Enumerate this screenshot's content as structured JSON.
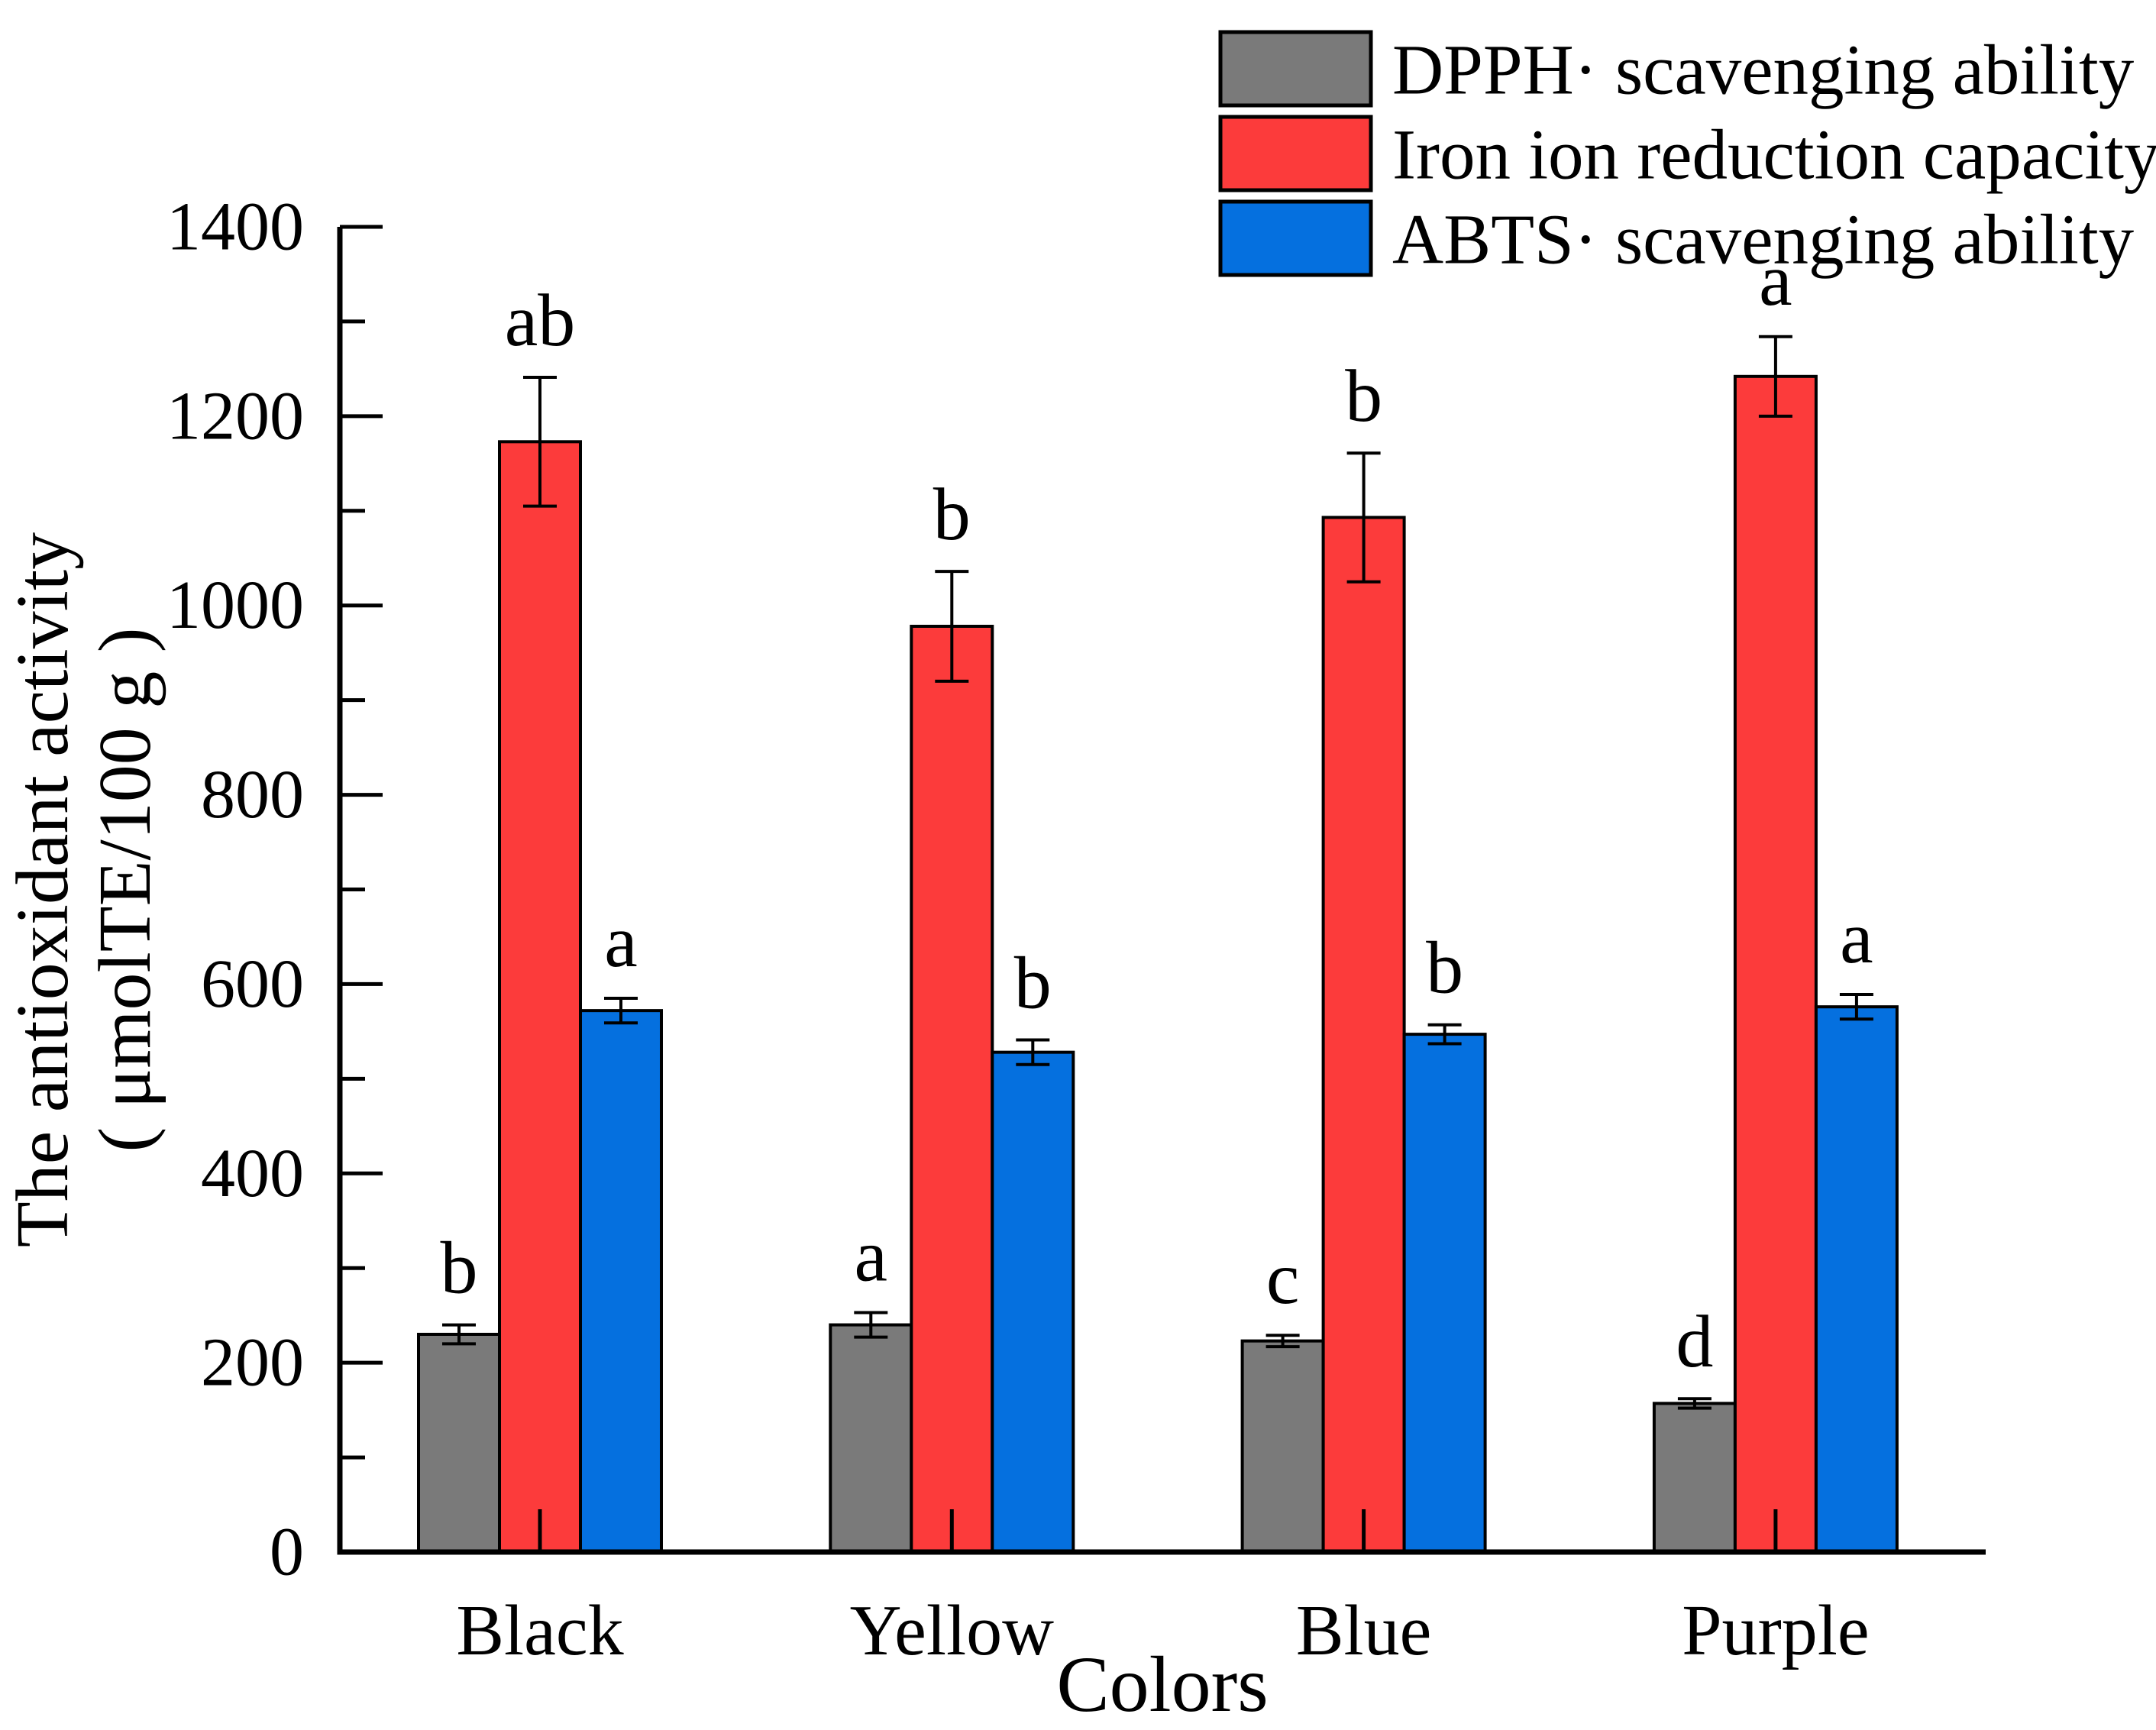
{
  "chart_data": {
    "type": "bar",
    "title": "",
    "categories": [
      "Black",
      "Yellow",
      "Blue",
      "Purple"
    ],
    "series": [
      {
        "name": "DPPH· scavenging ability",
        "color": "#7A7A7A",
        "values": [
          230,
          240,
          223,
          157
        ],
        "errors": [
          10,
          13,
          6,
          5
        ],
        "letters": [
          "b",
          "a",
          "c",
          "d"
        ]
      },
      {
        "name": "Iron ion reduction capacity",
        "color": "#FC3B3B",
        "values": [
          1173,
          978,
          1093,
          1242
        ],
        "errors": [
          68,
          58,
          68,
          42
        ],
        "letters": [
          "ab",
          "b",
          "b",
          "a"
        ]
      },
      {
        "name": "ABTS· scavenging ability",
        "color": "#0570DF",
        "values": [
          572,
          528,
          547,
          576
        ],
        "errors": [
          13,
          13,
          10,
          13
        ],
        "letters": [
          "a",
          "b",
          "b",
          "a"
        ]
      }
    ],
    "xlabel": "Colors",
    "ylabel_line1": "The antioxidant activity",
    "ylabel_line2": "( μmolTE/100 g )",
    "ylim": [
      0,
      1400
    ],
    "yticks": [
      0,
      200,
      400,
      600,
      800,
      1000,
      1200,
      1400
    ],
    "ytick_step": 200,
    "yminor_step": 100,
    "bar_edge_color": "#000000",
    "error_bar_color": "#000000",
    "legend_position": "top-right",
    "grid": false
  }
}
